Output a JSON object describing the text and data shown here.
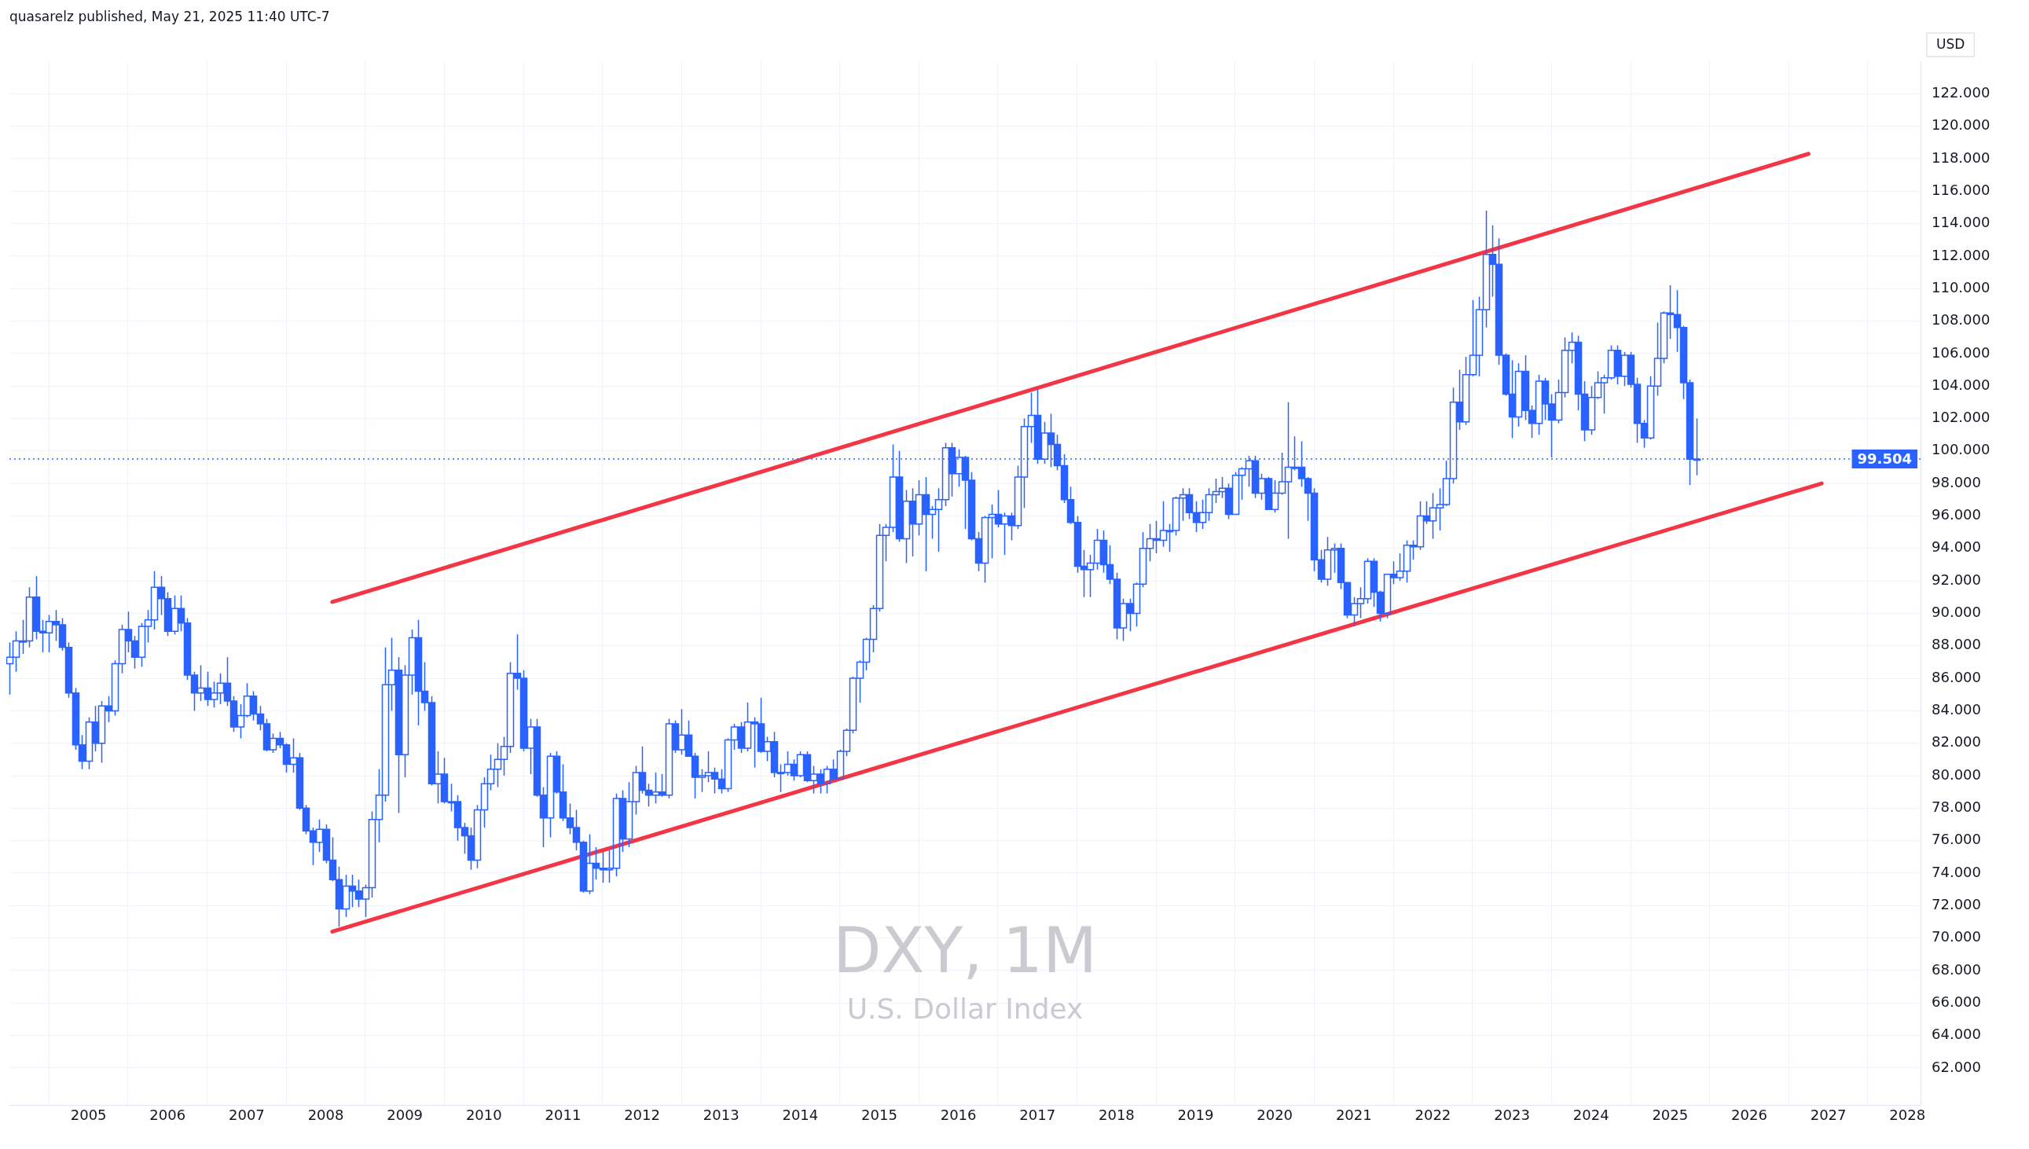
{
  "chart_data": {
    "type": "candlestick",
    "title": "DXY, 1M",
    "subtitle": "U.S. Dollar Index",
    "ylabel": "USD",
    "annotations": [
      "quasarelz published, May 21, 2025 11:40 UTC-7"
    ],
    "color": "#2962ff",
    "x": [
      "2004-01",
      "2004-02",
      "2004-03",
      "2004-04",
      "2004-05",
      "2004-06",
      "2004-07",
      "2004-08",
      "2004-09",
      "2004-10",
      "2004-11",
      "2004-12",
      "2005-01",
      "2005-02",
      "2005-03",
      "2005-04",
      "2005-05",
      "2005-06",
      "2005-07",
      "2005-08",
      "2005-09",
      "2005-10",
      "2005-11",
      "2005-12",
      "2006-01",
      "2006-02",
      "2006-03",
      "2006-04",
      "2006-05",
      "2006-06",
      "2006-07",
      "2006-08",
      "2006-09",
      "2006-10",
      "2006-11",
      "2006-12",
      "2007-01",
      "2007-02",
      "2007-03",
      "2007-04",
      "2007-05",
      "2007-06",
      "2007-07",
      "2007-08",
      "2007-09",
      "2007-10",
      "2007-11",
      "2007-12",
      "2008-01",
      "2008-02",
      "2008-03",
      "2008-04",
      "2008-05",
      "2008-06",
      "2008-07",
      "2008-08",
      "2008-09",
      "2008-10",
      "2008-11",
      "2008-12",
      "2009-01",
      "2009-02",
      "2009-03",
      "2009-04",
      "2009-05",
      "2009-06",
      "2009-07",
      "2009-08",
      "2009-09",
      "2009-10",
      "2009-11",
      "2009-12",
      "2010-01",
      "2010-02",
      "2010-03",
      "2010-04",
      "2010-05",
      "2010-06",
      "2010-07",
      "2010-08",
      "2010-09",
      "2010-10",
      "2010-11",
      "2010-12",
      "2011-01",
      "2011-02",
      "2011-03",
      "2011-04",
      "2011-05",
      "2011-06",
      "2011-07",
      "2011-08",
      "2011-09",
      "2011-10",
      "2011-11",
      "2011-12",
      "2012-01",
      "2012-02",
      "2012-03",
      "2012-04",
      "2012-05",
      "2012-06",
      "2012-07",
      "2012-08",
      "2012-09",
      "2012-10",
      "2012-11",
      "2012-12",
      "2013-01",
      "2013-02",
      "2013-03",
      "2013-04",
      "2013-05",
      "2013-06",
      "2013-07",
      "2013-08",
      "2013-09",
      "2013-10",
      "2013-11",
      "2013-12",
      "2014-01",
      "2014-02",
      "2014-03",
      "2014-04",
      "2014-05",
      "2014-06",
      "2014-07",
      "2014-08",
      "2014-09",
      "2014-10",
      "2014-11",
      "2014-12",
      "2015-01",
      "2015-02",
      "2015-03",
      "2015-04",
      "2015-05",
      "2015-06",
      "2015-07",
      "2015-08",
      "2015-09",
      "2015-10",
      "2015-11",
      "2015-12",
      "2016-01",
      "2016-02",
      "2016-03",
      "2016-04",
      "2016-05",
      "2016-06",
      "2016-07",
      "2016-08",
      "2016-09",
      "2016-10",
      "2016-11",
      "2016-12",
      "2017-01",
      "2017-02",
      "2017-03",
      "2017-04",
      "2017-05",
      "2017-06",
      "2017-07",
      "2017-08",
      "2017-09",
      "2017-10",
      "2017-11",
      "2017-12",
      "2018-01",
      "2018-02",
      "2018-03",
      "2018-04",
      "2018-05",
      "2018-06",
      "2018-07",
      "2018-08",
      "2018-09",
      "2018-10",
      "2018-11",
      "2018-12",
      "2019-01",
      "2019-02",
      "2019-03",
      "2019-04",
      "2019-05",
      "2019-06",
      "2019-07",
      "2019-08",
      "2019-09",
      "2019-10",
      "2019-11",
      "2019-12",
      "2020-01",
      "2020-02",
      "2020-03",
      "2020-04",
      "2020-05",
      "2020-06",
      "2020-07",
      "2020-08",
      "2020-09",
      "2020-10",
      "2020-11",
      "2020-12",
      "2021-01",
      "2021-02",
      "2021-03",
      "2021-04",
      "2021-05",
      "2021-06",
      "2021-07",
      "2021-08",
      "2021-09",
      "2021-10",
      "2021-11",
      "2021-12",
      "2022-01",
      "2022-02",
      "2022-03",
      "2022-04",
      "2022-05",
      "2022-06",
      "2022-07",
      "2022-08",
      "2022-09",
      "2022-10",
      "2022-11",
      "2022-12",
      "2023-01",
      "2023-02",
      "2023-03",
      "2023-04",
      "2023-05",
      "2023-06",
      "2023-07",
      "2023-08",
      "2023-09",
      "2023-10",
      "2023-11",
      "2023-12",
      "2024-01",
      "2024-02",
      "2024-03",
      "2024-04",
      "2024-05",
      "2024-06",
      "2024-07",
      "2024-08",
      "2024-09",
      "2024-10",
      "2024-11",
      "2024-12",
      "2025-01",
      "2025-02",
      "2025-03",
      "2025-04",
      "2025-05"
    ],
    "ohlc": [
      [
        86.9,
        88.2,
        85.0,
        87.3
      ],
      [
        87.3,
        88.9,
        86.4,
        88.3
      ],
      [
        88.3,
        89.6,
        87.5,
        88.3
      ],
      [
        88.3,
        91.6,
        87.9,
        91.0
      ],
      [
        91.0,
        92.3,
        88.4,
        88.9
      ],
      [
        88.9,
        89.6,
        87.6,
        88.8
      ],
      [
        88.8,
        89.9,
        87.6,
        89.5
      ],
      [
        89.5,
        90.2,
        88.3,
        89.3
      ],
      [
        89.3,
        89.7,
        87.7,
        87.9
      ],
      [
        87.9,
        88.2,
        84.8,
        85.1
      ],
      [
        85.1,
        85.4,
        81.6,
        81.9
      ],
      [
        81.9,
        82.5,
        80.4,
        80.9
      ],
      [
        80.9,
        83.6,
        80.4,
        83.3
      ],
      [
        83.3,
        84.3,
        81.5,
        82.0
      ],
      [
        82.0,
        84.6,
        80.8,
        84.3
      ],
      [
        84.3,
        84.9,
        83.3,
        84.0
      ],
      [
        84.0,
        87.1,
        83.7,
        86.9
      ],
      [
        86.9,
        89.3,
        86.3,
        89.0
      ],
      [
        89.0,
        90.1,
        87.6,
        88.3
      ],
      [
        88.3,
        88.6,
        86.6,
        87.3
      ],
      [
        87.3,
        89.4,
        86.7,
        89.2
      ],
      [
        89.2,
        90.2,
        88.2,
        89.6
      ],
      [
        89.6,
        92.6,
        89.0,
        91.6
      ],
      [
        91.6,
        92.3,
        89.9,
        90.9
      ],
      [
        90.9,
        91.3,
        88.6,
        88.9
      ],
      [
        88.9,
        91.1,
        88.7,
        90.3
      ],
      [
        90.3,
        91.1,
        88.9,
        89.4
      ],
      [
        89.4,
        89.7,
        85.9,
        86.2
      ],
      [
        86.2,
        86.4,
        84.0,
        85.1
      ],
      [
        85.1,
        86.8,
        84.6,
        85.4
      ],
      [
        85.4,
        86.4,
        84.3,
        84.7
      ],
      [
        84.7,
        85.8,
        84.2,
        85.1
      ],
      [
        85.1,
        86.3,
        84.4,
        85.7
      ],
      [
        85.7,
        87.3,
        84.3,
        84.6
      ],
      [
        84.6,
        84.9,
        82.7,
        83.0
      ],
      [
        83.0,
        84.4,
        82.3,
        83.7
      ],
      [
        83.7,
        85.7,
        83.6,
        84.9
      ],
      [
        84.9,
        85.2,
        83.4,
        83.8
      ],
      [
        83.8,
        84.3,
        82.8,
        83.2
      ],
      [
        83.2,
        83.5,
        81.5,
        81.6
      ],
      [
        81.6,
        82.6,
        81.4,
        82.3
      ],
      [
        82.3,
        82.7,
        81.7,
        81.9
      ],
      [
        81.9,
        82.0,
        80.2,
        80.7
      ],
      [
        80.7,
        82.3,
        80.2,
        81.1
      ],
      [
        81.1,
        81.4,
        77.9,
        78.0
      ],
      [
        78.0,
        78.2,
        76.4,
        76.6
      ],
      [
        76.6,
        76.8,
        74.5,
        75.9
      ],
      [
        75.9,
        77.3,
        75.3,
        76.7
      ],
      [
        76.7,
        77.0,
        74.6,
        74.8
      ],
      [
        74.8,
        76.2,
        73.5,
        73.6
      ],
      [
        73.6,
        74.4,
        70.7,
        71.8
      ],
      [
        71.8,
        73.9,
        71.3,
        73.2
      ],
      [
        73.2,
        73.9,
        71.9,
        72.9
      ],
      [
        72.9,
        73.6,
        71.9,
        72.4
      ],
      [
        72.4,
        73.3,
        71.3,
        73.1
      ],
      [
        73.1,
        77.8,
        72.5,
        77.3
      ],
      [
        77.3,
        80.4,
        75.9,
        78.8
      ],
      [
        78.8,
        87.9,
        78.4,
        85.6
      ],
      [
        85.6,
        88.5,
        84.0,
        86.5
      ],
      [
        86.5,
        87.3,
        77.7,
        81.3
      ],
      [
        81.3,
        86.8,
        79.9,
        86.2
      ],
      [
        86.2,
        89.0,
        85.0,
        88.5
      ],
      [
        88.5,
        89.6,
        83.1,
        85.2
      ],
      [
        85.2,
        87.0,
        84.0,
        84.5
      ],
      [
        84.5,
        84.9,
        79.4,
        79.5
      ],
      [
        79.5,
        81.5,
        78.3,
        80.1
      ],
      [
        80.1,
        81.1,
        78.3,
        78.4
      ],
      [
        78.4,
        79.5,
        77.8,
        78.4
      ],
      [
        78.4,
        78.8,
        76.0,
        76.8
      ],
      [
        76.8,
        77.1,
        75.2,
        76.3
      ],
      [
        76.3,
        76.8,
        74.2,
        74.8
      ],
      [
        74.8,
        78.2,
        74.3,
        77.9
      ],
      [
        77.9,
        79.9,
        76.8,
        79.5
      ],
      [
        79.5,
        81.3,
        79.1,
        80.4
      ],
      [
        80.4,
        82.0,
        79.3,
        81.0
      ],
      [
        81.0,
        82.4,
        80.0,
        81.8
      ],
      [
        81.8,
        87.0,
        81.4,
        86.3
      ],
      [
        86.3,
        88.7,
        85.3,
        86.0
      ],
      [
        86.0,
        86.5,
        81.5,
        81.7
      ],
      [
        81.7,
        83.5,
        80.1,
        83.0
      ],
      [
        83.0,
        83.5,
        78.7,
        78.8
      ],
      [
        78.8,
        79.3,
        75.6,
        77.4
      ],
      [
        77.4,
        81.4,
        76.2,
        81.2
      ],
      [
        81.2,
        81.5,
        78.9,
        79.0
      ],
      [
        79.0,
        80.7,
        77.2,
        77.4
      ],
      [
        77.4,
        78.3,
        76.4,
        76.8
      ],
      [
        76.8,
        77.9,
        75.4,
        75.9
      ],
      [
        75.9,
        76.0,
        72.8,
        72.9
      ],
      [
        72.9,
        76.4,
        72.7,
        74.6
      ],
      [
        74.6,
        75.6,
        73.6,
        74.3
      ],
      [
        74.3,
        75.3,
        73.4,
        74.2
      ],
      [
        74.2,
        75.4,
        73.4,
        74.3
      ],
      [
        74.3,
        78.9,
        73.8,
        78.6
      ],
      [
        78.6,
        79.1,
        75.3,
        76.1
      ],
      [
        76.1,
        79.6,
        75.6,
        78.4
      ],
      [
        78.4,
        80.6,
        77.6,
        80.2
      ],
      [
        80.2,
        81.8,
        78.9,
        79.1
      ],
      [
        79.1,
        79.5,
        78.1,
        78.8
      ],
      [
        78.8,
        80.2,
        78.3,
        79.0
      ],
      [
        79.0,
        80.1,
        78.7,
        78.8
      ],
      [
        78.8,
        83.5,
        78.6,
        83.2
      ],
      [
        83.2,
        83.4,
        81.4,
        81.6
      ],
      [
        81.6,
        84.1,
        81.3,
        82.5
      ],
      [
        82.5,
        83.4,
        81.2,
        81.2
      ],
      [
        81.2,
        81.4,
        78.6,
        79.9
      ],
      [
        79.9,
        80.4,
        79.0,
        80.0
      ],
      [
        80.0,
        81.5,
        79.6,
        80.2
      ],
      [
        80.2,
        80.5,
        78.9,
        79.8
      ],
      [
        79.8,
        80.4,
        78.9,
        79.2
      ],
      [
        79.2,
        82.3,
        79.0,
        82.2
      ],
      [
        82.2,
        83.2,
        81.6,
        83.0
      ],
      [
        83.0,
        83.3,
        81.4,
        81.7
      ],
      [
        81.7,
        84.5,
        81.5,
        83.3
      ],
      [
        83.3,
        83.6,
        80.5,
        83.2
      ],
      [
        83.2,
        84.8,
        81.4,
        81.5
      ],
      [
        81.5,
        82.4,
        80.9,
        82.1
      ],
      [
        82.1,
        82.7,
        79.9,
        80.2
      ],
      [
        80.2,
        80.7,
        79.0,
        80.2
      ],
      [
        80.2,
        81.5,
        80.0,
        80.7
      ],
      [
        80.7,
        81.0,
        79.7,
        80.0
      ],
      [
        80.0,
        81.5,
        79.9,
        81.3
      ],
      [
        81.3,
        81.5,
        79.6,
        79.7
      ],
      [
        79.7,
        80.6,
        78.9,
        80.1
      ],
      [
        80.1,
        80.4,
        78.9,
        79.5
      ],
      [
        79.5,
        80.6,
        78.9,
        80.4
      ],
      [
        80.4,
        81.0,
        79.7,
        79.8
      ],
      [
        79.8,
        81.6,
        79.8,
        81.5
      ],
      [
        81.5,
        82.9,
        81.2,
        82.8
      ],
      [
        82.8,
        86.1,
        82.6,
        86.0
      ],
      [
        86.0,
        87.1,
        84.5,
        87.0
      ],
      [
        87.0,
        88.5,
        86.5,
        88.4
      ],
      [
        88.4,
        90.5,
        87.6,
        90.3
      ],
      [
        90.3,
        95.5,
        90.1,
        94.8
      ],
      [
        94.8,
        95.5,
        93.2,
        95.3
      ],
      [
        95.3,
        100.4,
        95.0,
        98.4
      ],
      [
        98.4,
        100.0,
        94.4,
        94.6
      ],
      [
        94.6,
        97.6,
        93.1,
        96.9
      ],
      [
        96.9,
        97.7,
        93.5,
        95.5
      ],
      [
        95.5,
        98.2,
        94.8,
        97.3
      ],
      [
        97.3,
        98.4,
        92.6,
        96.1
      ],
      [
        96.1,
        96.6,
        94.6,
        96.4
      ],
      [
        96.4,
        97.7,
        93.8,
        97.0
      ],
      [
        97.0,
        100.5,
        96.6,
        100.2
      ],
      [
        100.2,
        100.5,
        97.2,
        98.6
      ],
      [
        98.6,
        100.1,
        97.8,
        99.6
      ],
      [
        99.6,
        99.7,
        95.2,
        98.2
      ],
      [
        98.2,
        98.7,
        94.5,
        94.6
      ],
      [
        94.6,
        95.0,
        92.6,
        93.1
      ],
      [
        93.1,
        96.0,
        91.9,
        95.9
      ],
      [
        95.9,
        96.7,
        93.4,
        96.1
      ],
      [
        96.1,
        97.6,
        95.3,
        95.5
      ],
      [
        95.5,
        96.2,
        93.6,
        96.0
      ],
      [
        96.0,
        96.2,
        94.5,
        95.4
      ],
      [
        95.4,
        99.1,
        95.2,
        98.4
      ],
      [
        98.4,
        102.0,
        96.5,
        101.5
      ],
      [
        101.5,
        103.6,
        100.5,
        102.2
      ],
      [
        102.2,
        103.8,
        99.2,
        99.5
      ],
      [
        99.5,
        101.8,
        99.2,
        101.1
      ],
      [
        101.1,
        102.3,
        99.0,
        100.4
      ],
      [
        100.4,
        101.0,
        98.8,
        99.1
      ],
      [
        99.1,
        99.8,
        96.8,
        97.0
      ],
      [
        97.0,
        97.8,
        95.5,
        95.6
      ],
      [
        95.6,
        96.0,
        92.5,
        92.9
      ],
      [
        92.9,
        93.9,
        91.0,
        92.7
      ],
      [
        92.7,
        93.6,
        91.0,
        93.1
      ],
      [
        93.1,
        95.2,
        92.7,
        94.5
      ],
      [
        94.5,
        95.1,
        92.5,
        93.0
      ],
      [
        93.0,
        94.2,
        91.8,
        92.1
      ],
      [
        92.1,
        92.5,
        88.4,
        89.1
      ],
      [
        89.1,
        90.9,
        88.3,
        90.6
      ],
      [
        90.6,
        90.9,
        88.9,
        90.0
      ],
      [
        90.0,
        91.9,
        89.2,
        91.8
      ],
      [
        91.8,
        95.0,
        91.6,
        94.0
      ],
      [
        94.0,
        95.5,
        93.2,
        94.6
      ],
      [
        94.6,
        95.7,
        93.7,
        94.5
      ],
      [
        94.5,
        96.9,
        94.1,
        95.1
      ],
      [
        95.1,
        95.5,
        93.8,
        95.1
      ],
      [
        95.1,
        97.2,
        94.8,
        97.1
      ],
      [
        97.1,
        97.7,
        95.7,
        97.3
      ],
      [
        97.3,
        97.7,
        95.8,
        96.2
      ],
      [
        96.2,
        96.9,
        95.0,
        95.6
      ],
      [
        95.6,
        97.0,
        95.2,
        96.2
      ],
      [
        96.2,
        97.7,
        95.7,
        97.3
      ],
      [
        97.3,
        98.3,
        96.8,
        97.5
      ],
      [
        97.5,
        98.4,
        97.1,
        97.7
      ],
      [
        97.7,
        98.0,
        95.8,
        96.1
      ],
      [
        96.1,
        98.7,
        96.1,
        98.5
      ],
      [
        98.5,
        99.0,
        97.0,
        98.9
      ],
      [
        98.9,
        99.7,
        97.8,
        99.4
      ],
      [
        99.4,
        99.7,
        97.1,
        97.4
      ],
      [
        97.4,
        98.6,
        97.0,
        98.3
      ],
      [
        98.3,
        98.4,
        96.4,
        96.4
      ],
      [
        96.4,
        98.2,
        96.2,
        97.4
      ],
      [
        97.4,
        99.9,
        97.3,
        98.1
      ],
      [
        98.1,
        103.0,
        94.6,
        99.0
      ],
      [
        99.0,
        100.9,
        98.8,
        99.0
      ],
      [
        99.0,
        100.6,
        97.8,
        98.3
      ],
      [
        98.3,
        98.4,
        95.7,
        97.4
      ],
      [
        97.4,
        97.7,
        92.6,
        93.3
      ],
      [
        93.3,
        93.9,
        91.9,
        92.1
      ],
      [
        92.1,
        94.7,
        91.7,
        93.9
      ],
      [
        93.9,
        94.3,
        92.5,
        94.0
      ],
      [
        94.0,
        94.3,
        91.5,
        91.9
      ],
      [
        91.9,
        91.9,
        89.7,
        89.9
      ],
      [
        89.9,
        91.0,
        89.2,
        90.6
      ],
      [
        90.6,
        91.6,
        89.7,
        90.9
      ],
      [
        90.9,
        93.4,
        90.6,
        93.2
      ],
      [
        93.2,
        93.4,
        90.4,
        91.3
      ],
      [
        91.3,
        91.4,
        89.5,
        90.0
      ],
      [
        90.0,
        92.4,
        89.7,
        92.4
      ],
      [
        92.4,
        93.2,
        91.8,
        92.2
      ],
      [
        92.2,
        93.7,
        92.0,
        92.6
      ],
      [
        92.6,
        94.5,
        91.9,
        94.2
      ],
      [
        94.2,
        94.5,
        93.3,
        94.1
      ],
      [
        94.1,
        96.9,
        93.9,
        96.0
      ],
      [
        96.0,
        96.9,
        95.5,
        95.7
      ],
      [
        95.7,
        97.4,
        94.6,
        96.5
      ],
      [
        96.5,
        97.7,
        95.1,
        96.7
      ],
      [
        96.7,
        99.4,
        96.6,
        98.3
      ],
      [
        98.3,
        103.9,
        98.0,
        103.0
      ],
      [
        103.0,
        105.0,
        101.3,
        101.8
      ],
      [
        101.8,
        105.8,
        101.6,
        104.7
      ],
      [
        104.7,
        109.3,
        104.6,
        105.9
      ],
      [
        105.9,
        109.5,
        104.6,
        108.7
      ],
      [
        108.7,
        114.8,
        107.6,
        112.1
      ],
      [
        112.1,
        113.9,
        109.5,
        111.5
      ],
      [
        111.5,
        113.1,
        105.3,
        105.9
      ],
      [
        105.9,
        106.0,
        103.4,
        103.5
      ],
      [
        103.5,
        105.6,
        100.8,
        102.1
      ],
      [
        102.1,
        105.4,
        101.5,
        104.9
      ],
      [
        104.9,
        105.9,
        101.9,
        102.5
      ],
      [
        102.5,
        102.8,
        100.8,
        101.7
      ],
      [
        101.7,
        104.7,
        101.0,
        104.3
      ],
      [
        104.3,
        104.5,
        101.9,
        102.9
      ],
      [
        102.9,
        103.5,
        99.6,
        101.9
      ],
      [
        101.9,
        104.4,
        101.7,
        103.6
      ],
      [
        103.6,
        107.0,
        103.3,
        106.2
      ],
      [
        106.2,
        107.3,
        105.4,
        106.7
      ],
      [
        106.7,
        107.1,
        102.5,
        103.5
      ],
      [
        103.5,
        104.3,
        100.6,
        101.3
      ],
      [
        101.3,
        104.0,
        101.0,
        103.3
      ],
      [
        103.3,
        104.9,
        103.2,
        104.2
      ],
      [
        104.2,
        104.7,
        102.3,
        104.5
      ],
      [
        104.5,
        106.5,
        104.4,
        106.2
      ],
      [
        106.2,
        106.5,
        104.1,
        104.6
      ],
      [
        104.6,
        106.1,
        104.0,
        105.9
      ],
      [
        105.9,
        106.1,
        103.9,
        104.1
      ],
      [
        104.1,
        104.5,
        100.5,
        101.7
      ],
      [
        101.7,
        101.9,
        100.2,
        100.8
      ],
      [
        100.8,
        104.6,
        100.7,
        104.0
      ],
      [
        104.0,
        107.9,
        103.4,
        105.7
      ],
      [
        105.7,
        108.6,
        105.4,
        108.5
      ],
      [
        108.5,
        110.2,
        106.9,
        108.4
      ],
      [
        108.4,
        109.9,
        106.1,
        107.6
      ],
      [
        107.6,
        107.7,
        103.2,
        104.2
      ],
      [
        104.2,
        104.4,
        97.9,
        99.5
      ],
      [
        99.5,
        102.0,
        98.5,
        99.504
      ]
    ],
    "series": [
      {
        "type": "line",
        "color": "#f23645",
        "x": [
          "2008-02",
          "2026-10"
        ],
        "values": [
          90.7,
          118.3
        ]
      },
      {
        "type": "line",
        "color": "#f23645",
        "x": [
          "2008-02",
          "2026-12"
        ],
        "values": [
          70.4,
          98.0
        ]
      }
    ],
    "ref_lines": [
      {
        "axis": "y",
        "value": 99.504,
        "label": "99.504",
        "color": "#2962ff",
        "line_style": "dotted"
      }
    ],
    "xlim": [
      "2004-01",
      "2028-03"
    ],
    "xticks": [
      "2005",
      "2006",
      "2007",
      "2008",
      "2009",
      "2010",
      "2011",
      "2012",
      "2013",
      "2014",
      "2015",
      "2016",
      "2017",
      "2018",
      "2019",
      "2020",
      "2021",
      "2022",
      "2023",
      "2024",
      "2025",
      "2026",
      "2027",
      "2028"
    ],
    "ylim": [
      59.7,
      124
    ],
    "yticks": [
      {
        "value": 62,
        "label": "62.000"
      },
      {
        "value": 64,
        "label": "64.000"
      },
      {
        "value": 66,
        "label": "66.000"
      },
      {
        "value": 68,
        "label": "68.000"
      },
      {
        "value": 70,
        "label": "70.000"
      },
      {
        "value": 72,
        "label": "72.000"
      },
      {
        "value": 74,
        "label": "74.000"
      },
      {
        "value": 76,
        "label": "76.000"
      },
      {
        "value": 78,
        "label": "78.000"
      },
      {
        "value": 80,
        "label": "80.000"
      },
      {
        "value": 82,
        "label": "82.000"
      },
      {
        "value": 84,
        "label": "84.000"
      },
      {
        "value": 86,
        "label": "86.000"
      },
      {
        "value": 88,
        "label": "88.000"
      },
      {
        "value": 90,
        "label": "90.000"
      },
      {
        "value": 92,
        "label": "92.000"
      },
      {
        "value": 94,
        "label": "94.000"
      },
      {
        "value": 96,
        "label": "96.000"
      },
      {
        "value": 98,
        "label": "98.000"
      },
      {
        "value": 100,
        "label": "100.000"
      },
      {
        "value": 102,
        "label": "102.000"
      },
      {
        "value": 104,
        "label": "104.000"
      },
      {
        "value": 106,
        "label": "106.000"
      },
      {
        "value": 108,
        "label": "108.000"
      },
      {
        "value": 110,
        "label": "110.000"
      },
      {
        "value": 112,
        "label": "112.000"
      },
      {
        "value": 114,
        "label": "114.000"
      },
      {
        "value": 116,
        "label": "116.000"
      },
      {
        "value": 118,
        "label": "118.000"
      },
      {
        "value": 120,
        "label": "120.000"
      },
      {
        "value": 122,
        "label": "122.000"
      }
    ],
    "grid": true
  }
}
